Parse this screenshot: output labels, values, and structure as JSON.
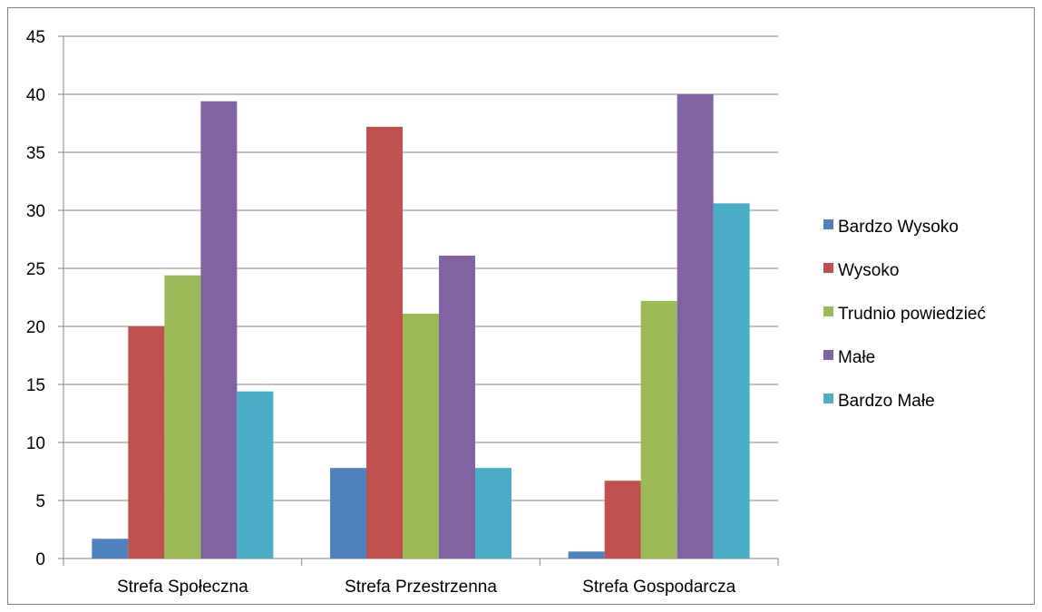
{
  "chart_data": {
    "type": "bar",
    "categories": [
      "Strefa Społeczna",
      "Strefa Przestrzenna",
      "Strefa Gospodarcza"
    ],
    "series": [
      {
        "name": "Bardzo Wysoko",
        "color": "#4F81BD",
        "values": [
          1.7,
          7.8,
          0.6
        ]
      },
      {
        "name": "Wysoko",
        "color": "#C0504D",
        "values": [
          20.0,
          37.2,
          6.7
        ]
      },
      {
        "name": "Trudnio powiedzieć",
        "color": "#9BBB59",
        "values": [
          24.4,
          21.1,
          22.2
        ]
      },
      {
        "name": "Małe",
        "color": "#8064A2",
        "values": [
          39.4,
          26.1,
          40.0
        ]
      },
      {
        "name": "Bardzo Małe",
        "color": "#4BACC6",
        "values": [
          14.4,
          7.8,
          30.6
        ]
      }
    ],
    "ylim": [
      0,
      45
    ],
    "yticks": [
      "0",
      "5",
      "10",
      "15",
      "20",
      "25",
      "30",
      "35",
      "40",
      "45"
    ],
    "grid": true,
    "legend": "right",
    "title": "",
    "xlabel": "",
    "ylabel": ""
  }
}
